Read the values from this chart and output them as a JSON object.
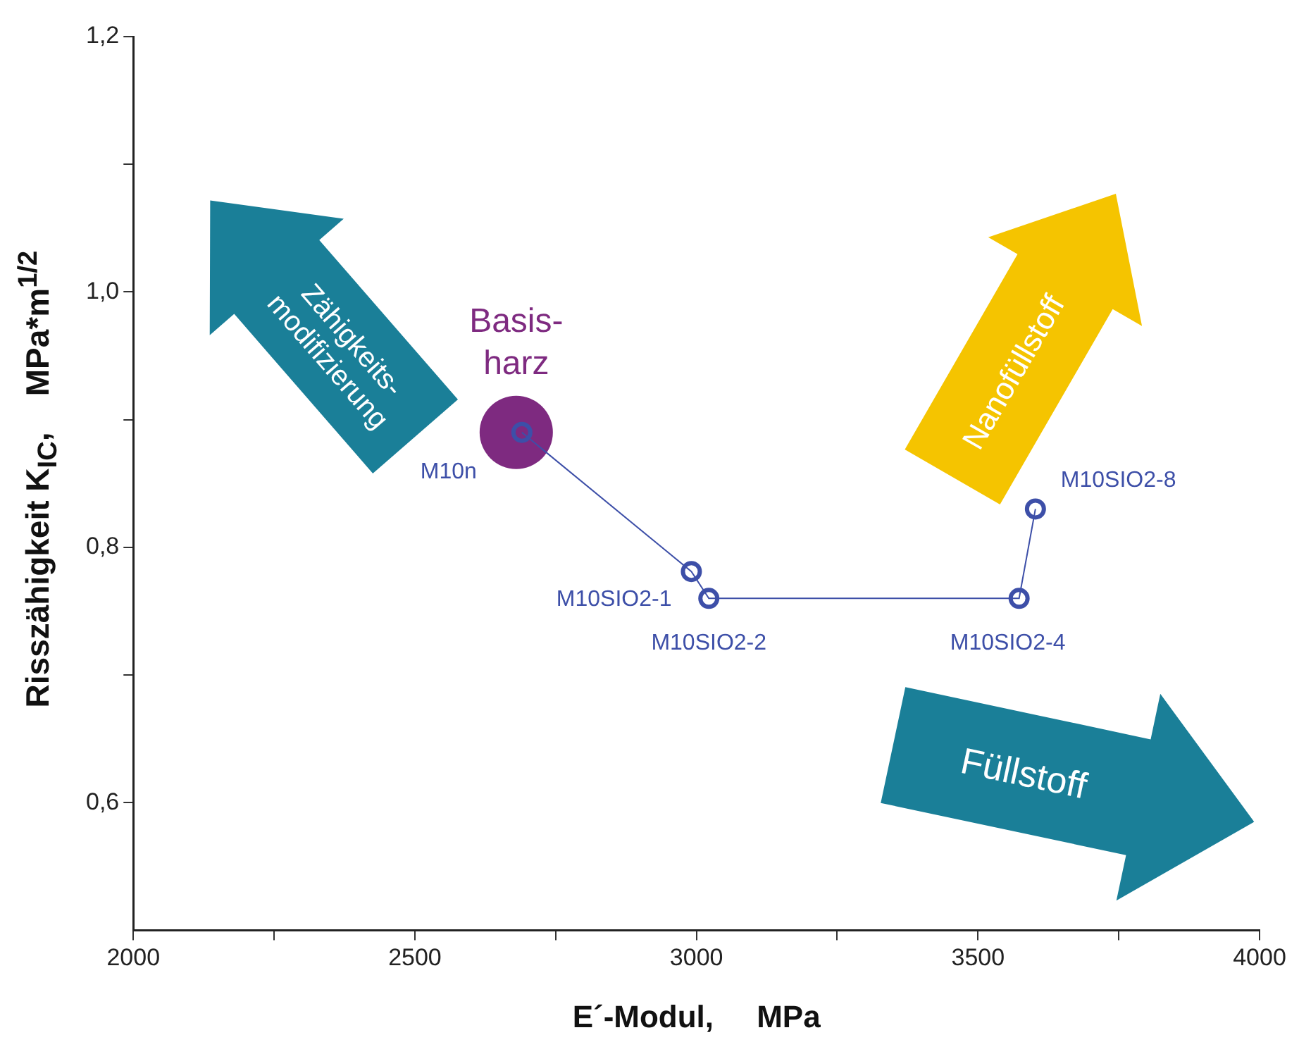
{
  "chart_data": {
    "type": "scatter",
    "xlabel": "E´-Modul,     MPa",
    "ylabel": "Risszähigkeit K$_{IC}$,    MPa*m$^{1/2}$",
    "xlim": [
      2000,
      4000
    ],
    "ylim": [
      0.5,
      1.2
    ],
    "xticks": [
      2000,
      {
        "value": 2250,
        "label": null
      },
      2500,
      {
        "value": 2750,
        "label": null
      },
      3000,
      {
        "value": 3250,
        "label": null
      },
      3500,
      {
        "value": 3750,
        "label": null
      },
      4000
    ],
    "yticks": [
      {
        "value": 0.6,
        "label": "0,6"
      },
      {
        "value": 0.7,
        "label": null
      },
      {
        "value": 0.8,
        "label": "0,8"
      },
      {
        "value": 0.9,
        "label": null
      },
      {
        "value": 1.0,
        "label": "1,0"
      },
      {
        "value": 1.1,
        "label": null
      },
      {
        "value": 1.2,
        "label": "1,2"
      }
    ],
    "grid": false,
    "legend": false,
    "marker": "circle",
    "series": [
      {
        "type": "scatter",
        "color": "#7e2a80",
        "x": [
          2680
        ],
        "values": [
          0.89
        ]
      },
      {
        "type": "line",
        "color": "#3d4fa8",
        "x": [
          2690,
          2991,
          3022,
          3573,
          3602
        ],
        "values": [
          0.89,
          0.781,
          0.76,
          0.76,
          0.83
        ]
      }
    ],
    "annotations": [
      {
        "text": "Basis-\nharz",
        "x": 2680,
        "y": 0.89
      },
      {
        "text": "M10n",
        "x": 2690,
        "y": 0.89
      },
      {
        "text": "M10SIO2-1",
        "x": 2991,
        "y": 0.781
      },
      {
        "text": "M10SIO2-2",
        "x": 3022,
        "y": 0.76
      },
      {
        "text": "M10SIO2-4",
        "x": 3573,
        "y": 0.76
      },
      {
        "text": "M10SIO2-8",
        "x": 3602,
        "y": 0.83
      },
      "Zähigkeits-\nmodifizierung",
      "Nanofüllstoff",
      "Füllstoff"
    ]
  }
}
